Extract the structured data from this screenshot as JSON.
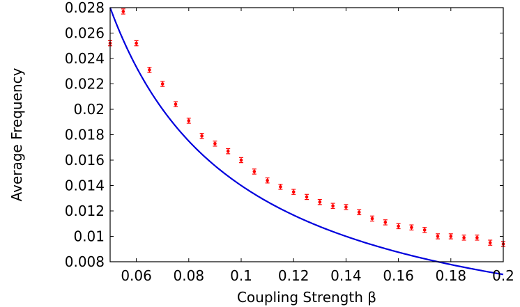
{
  "chart_data": {
    "type": "scatter",
    "xlabel": "Coupling Strength β",
    "ylabel": "Average Frequency",
    "xlim": [
      0.05,
      0.2
    ],
    "ylim": [
      0.008,
      0.028
    ],
    "x_ticks": [
      0.06,
      0.08,
      0.1,
      0.12,
      0.14,
      0.16,
      0.18,
      0.2
    ],
    "x_tick_labels": [
      "0.06",
      "0.08",
      "0.1",
      "0.12",
      "0.14",
      "0.16",
      "0.18",
      "0.2"
    ],
    "y_ticks": [
      0.008,
      0.01,
      0.012,
      0.014,
      0.016,
      0.018,
      0.02,
      0.022,
      0.024,
      0.026,
      0.028
    ],
    "y_tick_labels": [
      "0.008",
      "0.01",
      "0.012",
      "0.014",
      "0.016",
      "0.018",
      "0.02",
      "0.022",
      "0.024",
      "0.026",
      "0.028"
    ],
    "grid": false,
    "series": [
      {
        "type": "scatter",
        "color": "#ff0000",
        "marker": "point-with-errorbar",
        "x": [
          0.05,
          0.055,
          0.06,
          0.065,
          0.07,
          0.075,
          0.08,
          0.085,
          0.09,
          0.095,
          0.1,
          0.105,
          0.11,
          0.115,
          0.12,
          0.125,
          0.13,
          0.135,
          0.14,
          0.145,
          0.15,
          0.155,
          0.16,
          0.165,
          0.17,
          0.175,
          0.18,
          0.185,
          0.19,
          0.195,
          0.2
        ],
        "y": [
          0.0252,
          0.0277,
          0.0252,
          0.0231,
          0.022,
          0.0204,
          0.0191,
          0.0179,
          0.0173,
          0.0167,
          0.016,
          0.0151,
          0.0144,
          0.0139,
          0.0135,
          0.0131,
          0.0127,
          0.0124,
          0.0123,
          0.0119,
          0.0114,
          0.0111,
          0.0108,
          0.0107,
          0.0105,
          0.01,
          0.01,
          0.0099,
          0.0099,
          0.0095,
          0.0094
        ],
        "error": 0.0002
      },
      {
        "type": "line",
        "color": "#0000dd",
        "function": "y = 0.0014 / x",
        "x_range": [
          0.05,
          0.2
        ]
      }
    ]
  }
}
